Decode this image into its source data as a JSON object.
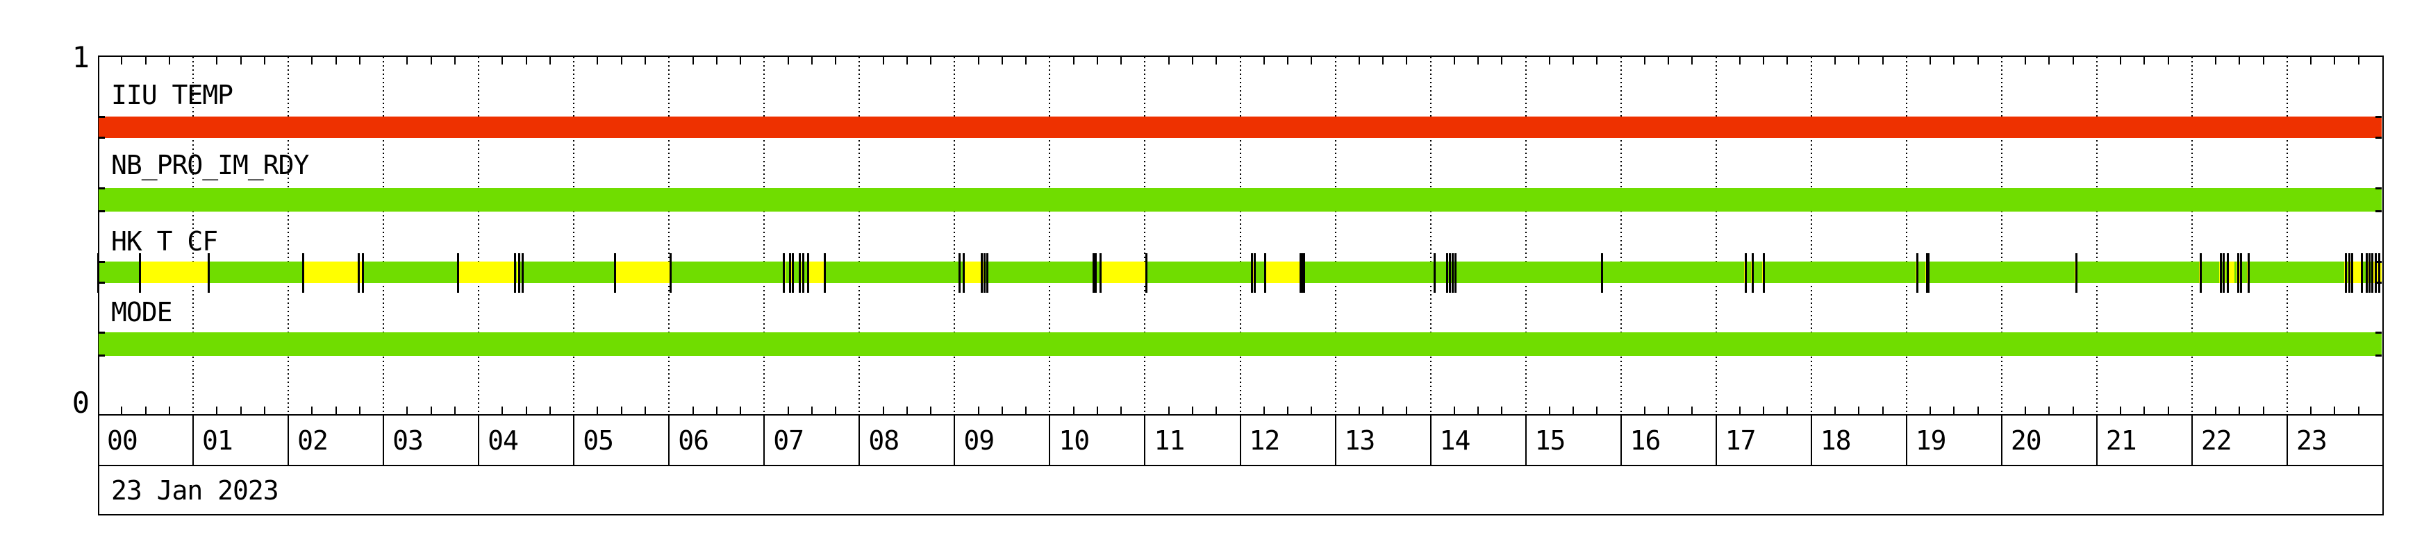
{
  "window": {
    "background": "#FFFFFF"
  },
  "colors": {
    "red": "#EE3100",
    "green": "#70DD00",
    "yellow": "#FFFF00",
    "line": "#000000"
  },
  "y_axis": {
    "top_label": "1",
    "bottom_label": "0"
  },
  "x_axis": {
    "date_label": "23 Jan 2023",
    "hours": [
      "00",
      "01",
      "02",
      "03",
      "04",
      "05",
      "06",
      "07",
      "08",
      "09",
      "10",
      "11",
      "12",
      "13",
      "14",
      "15",
      "16",
      "17",
      "18",
      "19",
      "20",
      "21",
      "22",
      "23"
    ],
    "minor_tick_minutes": 15,
    "gridlines": "dotted-hourly"
  },
  "chart_data": {
    "type": "timeline-status",
    "title": "",
    "date": "23 Jan 2023",
    "x_range_hours": [
      0,
      24
    ],
    "rows": [
      {
        "label": "IIU TEMP",
        "segments": [
          {
            "start": 0,
            "end": 24,
            "color": "red"
          }
        ],
        "ticks": []
      },
      {
        "label": "NB_PRO_IM_RDY",
        "segments": [
          {
            "start": 0,
            "end": 24,
            "color": "green"
          }
        ],
        "ticks": []
      },
      {
        "label": "HK T CF",
        "segments": [
          {
            "start": 0,
            "end": 24,
            "color": "green"
          },
          {
            "start": 0.44,
            "end": 1.16,
            "color": "yellow"
          },
          {
            "start": 2.15,
            "end": 2.74,
            "color": "yellow"
          },
          {
            "start": 2.745,
            "end": 2.765,
            "color": "yellow"
          },
          {
            "start": 3.78,
            "end": 4.38,
            "color": "yellow"
          },
          {
            "start": 4.395,
            "end": 4.415,
            "color": "yellow"
          },
          {
            "start": 5.43,
            "end": 6.01,
            "color": "yellow"
          },
          {
            "start": 7.2,
            "end": 7.22,
            "color": "yellow"
          },
          {
            "start": 7.265,
            "end": 7.285,
            "color": "yellow"
          },
          {
            "start": 7.37,
            "end": 7.39,
            "color": "yellow"
          },
          {
            "start": 7.46,
            "end": 7.63,
            "color": "yellow"
          },
          {
            "start": 9.045,
            "end": 9.06,
            "color": "yellow"
          },
          {
            "start": 9.08,
            "end": 9.28,
            "color": "yellow"
          },
          {
            "start": 9.295,
            "end": 9.315,
            "color": "yellow"
          },
          {
            "start": 10.47,
            "end": 10.49,
            "color": "yellow"
          },
          {
            "start": 10.53,
            "end": 11.01,
            "color": "yellow"
          },
          {
            "start": 12.115,
            "end": 12.145,
            "color": "yellow"
          },
          {
            "start": 12.27,
            "end": 12.67,
            "color": "yellow"
          },
          {
            "start": 14.03,
            "end": 14.05,
            "color": "yellow"
          },
          {
            "start": 14.165,
            "end": 14.185,
            "color": "yellow"
          },
          {
            "start": 14.225,
            "end": 14.245,
            "color": "yellow"
          },
          {
            "start": 15.79,
            "end": 15.81,
            "color": "yellow"
          },
          {
            "start": 17.3,
            "end": 17.32,
            "color": "yellow"
          },
          {
            "start": 17.37,
            "end": 17.39,
            "color": "yellow"
          },
          {
            "start": 17.49,
            "end": 17.51,
            "color": "yellow"
          },
          {
            "start": 19.1,
            "end": 19.12,
            "color": "yellow"
          },
          {
            "start": 19.2,
            "end": 19.225,
            "color": "yellow"
          },
          {
            "start": 20.77,
            "end": 20.79,
            "color": "yellow"
          },
          {
            "start": 22.08,
            "end": 22.1,
            "color": "yellow"
          },
          {
            "start": 22.295,
            "end": 22.315,
            "color": "yellow"
          },
          {
            "start": 22.34,
            "end": 22.355,
            "color": "yellow"
          },
          {
            "start": 22.37,
            "end": 22.45,
            "color": "yellow"
          },
          {
            "start": 22.475,
            "end": 22.49,
            "color": "yellow"
          },
          {
            "start": 22.505,
            "end": 22.52,
            "color": "yellow"
          },
          {
            "start": 22.585,
            "end": 22.6,
            "color": "yellow"
          },
          {
            "start": 23.605,
            "end": 23.625,
            "color": "yellow"
          },
          {
            "start": 23.645,
            "end": 23.655,
            "color": "yellow"
          },
          {
            "start": 23.66,
            "end": 24,
            "color": "yellow"
          },
          {
            "start": 23.79,
            "end": 23.83,
            "color": "green"
          },
          {
            "start": 23.86,
            "end": 23.89,
            "color": "green"
          }
        ],
        "ticks": [
          0.0,
          0.44,
          1.16,
          2.15,
          2.74,
          2.78,
          3.78,
          4.38,
          4.42,
          4.46,
          5.43,
          6.01,
          7.2,
          7.27,
          7.3,
          7.37,
          7.41,
          7.46,
          7.63,
          9.05,
          9.09,
          9.28,
          9.31,
          9.34,
          10.46,
          10.48,
          10.53,
          11.01,
          12.12,
          12.15,
          12.26,
          12.63,
          12.65,
          12.67,
          14.04,
          14.17,
          14.2,
          14.23,
          14.26,
          15.8,
          17.31,
          17.38,
          17.5,
          19.11,
          19.21,
          19.23,
          20.78,
          22.09,
          22.3,
          22.33,
          22.37,
          22.48,
          22.51,
          22.59,
          23.61,
          23.65,
          23.68,
          23.78,
          23.83,
          23.86,
          23.89,
          23.93,
          23.96
        ]
      },
      {
        "label": "MODE",
        "segments": [
          {
            "start": 0,
            "end": 24,
            "color": "green"
          }
        ],
        "ticks": []
      }
    ]
  }
}
